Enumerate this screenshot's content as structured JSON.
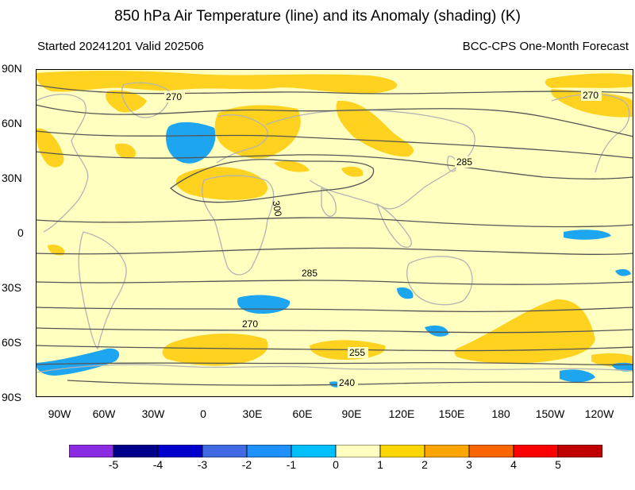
{
  "header": {
    "title": "850 hPa Air Temperature (line) and its Anomaly (shading) (K)",
    "started": "Started 20241201  Valid 202506",
    "product": "BCC-CPS One-Month Forecast"
  },
  "axes": {
    "lat_labels": [
      "90N",
      "60N",
      "30N",
      "0",
      "30S",
      "60S",
      "90S"
    ],
    "lon_labels": [
      "90W",
      "60W",
      "30W",
      "0",
      "30E",
      "60E",
      "90E",
      "120E",
      "150E",
      "180",
      "150W",
      "120W"
    ]
  },
  "contour_labels": [
    "270",
    "270",
    "285",
    "300",
    "285",
    "270",
    "255",
    "240"
  ],
  "colorbar": {
    "labels": [
      "-5",
      "-4",
      "-3",
      "-2",
      "-1",
      "0",
      "1",
      "2",
      "3",
      "4",
      "5"
    ],
    "colors": [
      "#8a2be2",
      "#00008b",
      "#0000cd",
      "#4169e1",
      "#1e90ff",
      "#00bfff",
      "#ffffc0",
      "#ffd700",
      "#ffa500",
      "#ff6600",
      "#ff0000",
      "#c00000"
    ]
  },
  "colors": {
    "background": "#ffffc0",
    "warm_anomaly": "#ffd21f",
    "cold_anomaly": "#1ea5f0",
    "contour": "#555555",
    "coastline": "#b4b4b4"
  }
}
